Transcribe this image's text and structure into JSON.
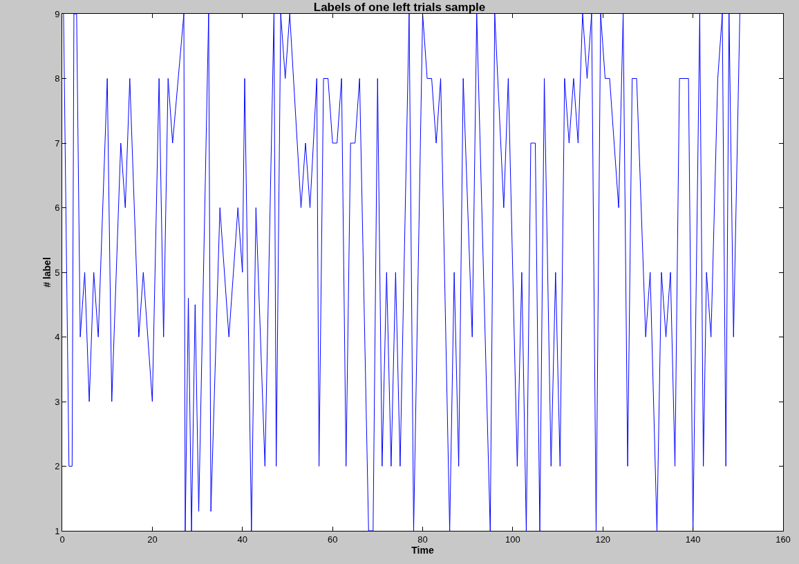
{
  "chart_data": {
    "type": "line",
    "title": "Labels of one left trials sample",
    "xlabel": "Time",
    "ylabel": "# label",
    "xlim": [
      0,
      160
    ],
    "xticks": [
      0,
      20,
      40,
      60,
      80,
      100,
      120,
      140,
      160
    ],
    "ylim": [
      1,
      9
    ],
    "yticks": [
      1,
      2,
      3,
      4,
      5,
      6,
      7,
      8,
      9
    ],
    "legend": false,
    "marker": "none",
    "line_style": "solid",
    "series": [
      {
        "color": "#0000ff",
        "x": [
          0.3,
          1.5,
          2.2,
          2.6,
          3.2,
          4,
          5,
          6,
          7,
          8,
          10,
          11,
          13,
          14,
          15,
          17,
          18,
          20,
          21.5,
          22.5,
          23.5,
          24.5,
          27,
          27.3,
          28,
          28.7,
          29.5,
          30.3,
          32.5,
          33,
          35,
          37,
          39,
          40,
          40.5,
          42,
          43,
          45,
          47,
          47.5,
          48.5,
          49.5,
          50.5,
          53,
          54,
          55,
          56.5,
          57,
          58,
          59,
          60,
          61,
          62,
          63,
          64,
          65,
          66,
          68,
          69,
          70,
          71,
          72,
          73,
          74,
          75,
          77,
          78,
          80,
          81,
          82,
          83,
          84,
          86,
          87,
          88,
          89,
          91,
          92,
          95,
          96,
          98,
          99,
          101,
          102,
          103,
          104,
          105,
          106,
          107,
          108.5,
          109.5,
          110.5,
          111.5,
          112.5,
          113.5,
          114.5,
          115.5,
          116.5,
          117.5,
          118.5,
          119.5,
          120.5,
          121.5,
          123.5,
          124.5,
          125.5,
          126.5,
          127.5,
          129.5,
          130.5,
          132,
          133,
          134,
          135,
          136,
          137,
          139,
          140,
          141.5,
          142.3,
          143,
          144,
          145.5,
          146.5,
          147.3,
          148,
          149,
          150.4
        ],
        "values": [
          9,
          2,
          2,
          9,
          9,
          4,
          5,
          3,
          5,
          4,
          8,
          3,
          7,
          6,
          8,
          4,
          5,
          3,
          8,
          4,
          8,
          7,
          9,
          1,
          4.6,
          1,
          4.5,
          1.3,
          9,
          1.3,
          6,
          4,
          6,
          5,
          8,
          1,
          6,
          2,
          9,
          2,
          9,
          8,
          9,
          6,
          7,
          6,
          8,
          2,
          8,
          8,
          7,
          7,
          8,
          2,
          7,
          7,
          8,
          1,
          1,
          8,
          2,
          5,
          2,
          5,
          2,
          9,
          1,
          9,
          8,
          8,
          7,
          8,
          1,
          5,
          2,
          8,
          4,
          9,
          1,
          9,
          6,
          8,
          2,
          5,
          1,
          7,
          7,
          1,
          8,
          2,
          5,
          2,
          8,
          7,
          8,
          7,
          9,
          8,
          9,
          1,
          9,
          8,
          8,
          6,
          9,
          2,
          8,
          8,
          4,
          5,
          1,
          5,
          4,
          5,
          2,
          8,
          8,
          1,
          9,
          2,
          5,
          4,
          8,
          9,
          2,
          9,
          4,
          9
        ]
      }
    ]
  }
}
